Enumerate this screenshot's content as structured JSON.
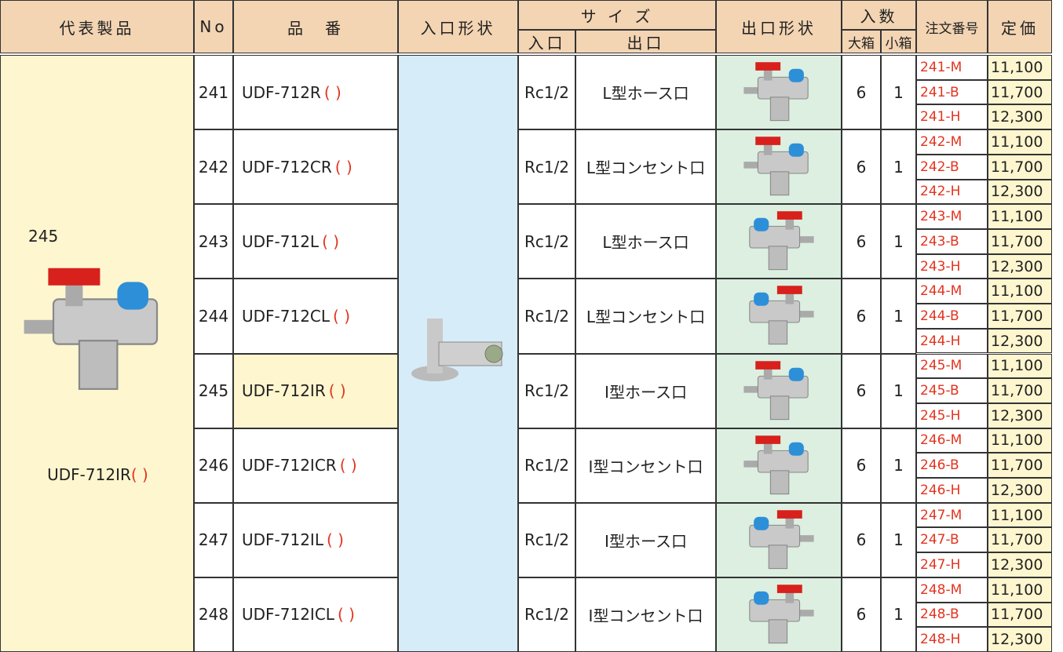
{
  "header": {
    "representative": "代表製品",
    "no": "No",
    "part": "品　番",
    "inlet_shape": "入口形状",
    "size": "サ イ ズ",
    "size_in": "入口",
    "size_out": "出口",
    "outlet_shape": "出口形状",
    "qty": "入数",
    "big": "大箱",
    "small": "小箱",
    "order": "注文番号",
    "price": "定価"
  },
  "representative": {
    "no": "245",
    "part": "UDF-712IR",
    "paren": "( )"
  },
  "rows": [
    {
      "no": "241",
      "part": "UDF-712R",
      "paren": "( )",
      "inlet": "Rc1/2",
      "outlet": "L型ホース口",
      "big": "6",
      "small": "1",
      "orders": [
        {
          "code": "241-M",
          "price": "11,100"
        },
        {
          "code": "241-B",
          "price": "11,700"
        },
        {
          "code": "241-H",
          "price": "12,300"
        }
      ]
    },
    {
      "no": "242",
      "part": "UDF-712CR",
      "paren": "( )",
      "inlet": "Rc1/2",
      "outlet": "L型コンセント口",
      "big": "6",
      "small": "1",
      "orders": [
        {
          "code": "242-M",
          "price": "11,100"
        },
        {
          "code": "242-B",
          "price": "11,700"
        },
        {
          "code": "242-H",
          "price": "12,300"
        }
      ]
    },
    {
      "no": "243",
      "part": "UDF-712L",
      "paren": "( )",
      "inlet": "Rc1/2",
      "outlet": "L型ホース口",
      "big": "6",
      "small": "1",
      "orders": [
        {
          "code": "243-M",
          "price": "11,100"
        },
        {
          "code": "243-B",
          "price": "11,700"
        },
        {
          "code": "243-H",
          "price": "12,300"
        }
      ]
    },
    {
      "no": "244",
      "part": "UDF-712CL",
      "paren": "( )",
      "inlet": "Rc1/2",
      "outlet": "L型コンセント口",
      "big": "6",
      "small": "1",
      "orders": [
        {
          "code": "244-M",
          "price": "11,100"
        },
        {
          "code": "244-B",
          "price": "11,700"
        },
        {
          "code": "244-H",
          "price": "12,300"
        }
      ]
    },
    {
      "no": "245",
      "part": "UDF-712IR",
      "paren": "( )",
      "inlet": "Rc1/2",
      "outlet": "I型ホース口",
      "big": "6",
      "small": "1",
      "orders": [
        {
          "code": "245-M",
          "price": "11,100"
        },
        {
          "code": "245-B",
          "price": "11,700"
        },
        {
          "code": "245-H",
          "price": "12,300"
        }
      ]
    },
    {
      "no": "246",
      "part": "UDF-712ICR",
      "paren": "( )",
      "inlet": "Rc1/2",
      "outlet": "I型コンセント口",
      "big": "6",
      "small": "1",
      "orders": [
        {
          "code": "246-M",
          "price": "11,100"
        },
        {
          "code": "246-B",
          "price": "11,700"
        },
        {
          "code": "246-H",
          "price": "12,300"
        }
      ]
    },
    {
      "no": "247",
      "part": "UDF-712IL",
      "paren": "( )",
      "inlet": "Rc1/2",
      "outlet": "I型ホース口",
      "big": "6",
      "small": "1",
      "orders": [
        {
          "code": "247-M",
          "price": "11,100"
        },
        {
          "code": "247-B",
          "price": "11,700"
        },
        {
          "code": "247-H",
          "price": "12,300"
        }
      ]
    },
    {
      "no": "248",
      "part": "UDF-712ICL",
      "paren": "( )",
      "inlet": "Rc1/2",
      "outlet": "I型コンセント口",
      "big": "6",
      "small": "1",
      "orders": [
        {
          "code": "248-M",
          "price": "11,100"
        },
        {
          "code": "248-B",
          "price": "11,700"
        },
        {
          "code": "248-H",
          "price": "12,300"
        }
      ]
    }
  ]
}
